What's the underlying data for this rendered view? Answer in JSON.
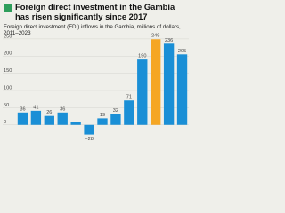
{
  "chart_data": {
    "type": "bar",
    "title": "Foreign direct investment in the Gambia has risen significantly since 2017",
    "subtitle": "Foreign direct investment (FDI) inflows in the Gambia, millions of dollars, 2011–2023",
    "values": [
      36,
      41,
      26,
      36,
      8,
      -28,
      19,
      32,
      71,
      190,
      249,
      236,
      205
    ],
    "value_labels": [
      "36",
      "41",
      "26",
      "36",
      null,
      "−28",
      "19",
      "32",
      "71",
      "190",
      "249",
      "236",
      "205"
    ],
    "colors": [
      "#1a8fd6",
      "#1a8fd6",
      "#1a8fd6",
      "#1a8fd6",
      "#1a8fd6",
      "#1a8fd6",
      "#1a8fd6",
      "#1a8fd6",
      "#1a8fd6",
      "#1a8fd6",
      "#f5a623",
      "#1a8fd6",
      "#1a8fd6"
    ],
    "ylim": [
      -60,
      260
    ],
    "yticks": [
      0,
      50,
      100,
      150,
      200,
      250
    ],
    "grid": true
  }
}
